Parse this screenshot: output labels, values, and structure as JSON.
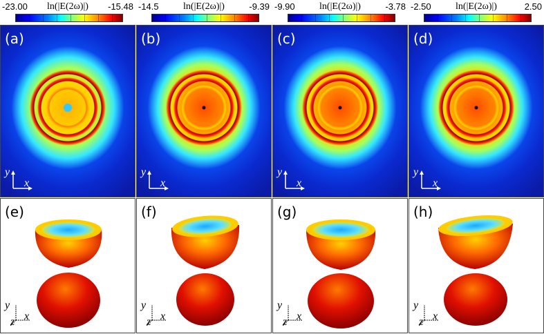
{
  "colorbars": [
    {
      "title": "ln(|E(2ω)|)",
      "min": "-23.00",
      "max": "-15.48"
    },
    {
      "title": "ln(|E(2ω)|)",
      "min": "-14.5",
      "max": "-9.39"
    },
    {
      "title": "ln(|E(2ω)|)",
      "min": "-9.90",
      "max": "-3.78"
    },
    {
      "title": "ln(|E(2ω)|)",
      "min": "-2.50",
      "max": "2.50"
    }
  ],
  "top_panels": [
    {
      "label": "(a)",
      "axis_x": "x",
      "axis_y": "y"
    },
    {
      "label": "(b)",
      "axis_x": "x",
      "axis_y": "y"
    },
    {
      "label": "(c)",
      "axis_x": "x",
      "axis_y": "y"
    },
    {
      "label": "(d)",
      "axis_x": "x",
      "axis_y": "y"
    }
  ],
  "bottom_panels": [
    {
      "label": "(e)",
      "axis_x": "x",
      "axis_y": "y",
      "axis_z": "z"
    },
    {
      "label": "(f)",
      "axis_x": "x",
      "axis_y": "y",
      "axis_z": "z"
    },
    {
      "label": "(g)",
      "axis_x": "x",
      "axis_y": "y",
      "axis_z": "z"
    },
    {
      "label": "(h)",
      "axis_x": "x",
      "axis_y": "y",
      "axis_z": "z"
    }
  ],
  "colormap": [
    "#00008f",
    "#0000ff",
    "#0080ff",
    "#00ffff",
    "#80ff80",
    "#ffff00",
    "#ff8000",
    "#ff0000",
    "#800000"
  ]
}
